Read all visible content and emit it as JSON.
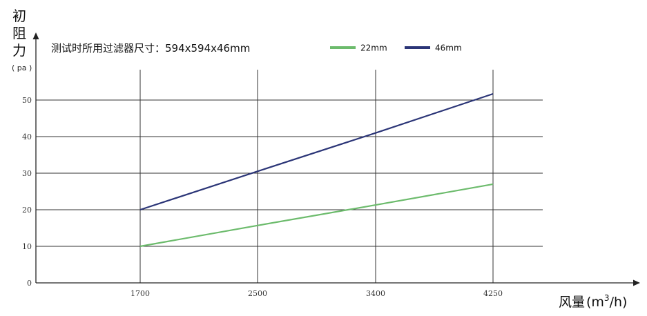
{
  "chart_data": {
    "type": "line",
    "ylabel_chars": [
      "初",
      "阻",
      "力"
    ],
    "yunit": "( pa )",
    "note": "测试时所用过滤器尺寸：594x594x46mm",
    "xlabel_main": "风量",
    "xlabel_unit_pre": "(m",
    "xlabel_unit_sup": "3",
    "xlabel_unit_post": "/h)",
    "x_ticks": [
      "1700",
      "2500",
      "3400",
      "4250"
    ],
    "y_ticks": [
      "0",
      "10",
      "20",
      "30",
      "40",
      "50"
    ],
    "ylim": [
      0,
      50
    ],
    "grid": true,
    "legend_position": "top",
    "series": [
      {
        "name": "22mm",
        "color": "#6cbb6c",
        "x": [
          1700,
          2500,
          3400,
          4250
        ],
        "y": [
          10,
          15.7,
          21.3,
          27
        ]
      },
      {
        "name": "46mm",
        "color": "#2b3577",
        "x": [
          1700,
          2500,
          3400,
          4250
        ],
        "y": [
          20,
          30.5,
          41,
          51.7
        ]
      }
    ]
  }
}
